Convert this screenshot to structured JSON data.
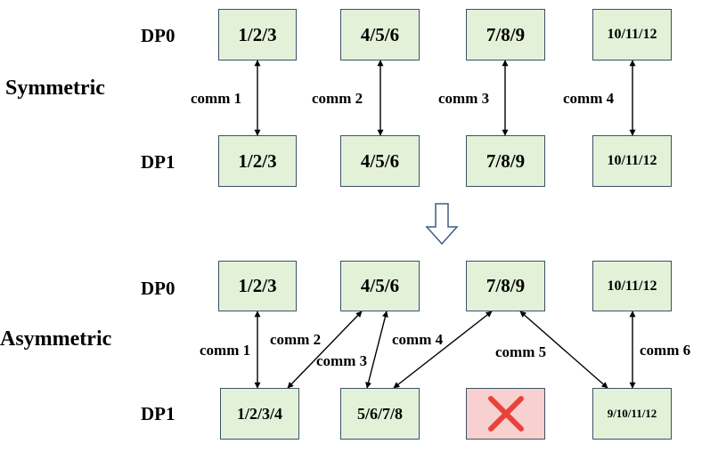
{
  "symmetric": {
    "title": "Symmetric",
    "dp0_label": "DP0",
    "dp1_label": "DP1",
    "dp0": [
      "1/2/3",
      "4/5/6",
      "7/8/9",
      "10/11/12"
    ],
    "dp1": [
      "1/2/3",
      "4/5/6",
      "7/8/9",
      "10/11/12"
    ],
    "comms": [
      "comm 1",
      "comm 2",
      "comm 3",
      "comm 4"
    ]
  },
  "asymmetric": {
    "title": "Asymmetric",
    "dp0_label": "DP0",
    "dp1_label": "DP1",
    "dp0": [
      "1/2/3",
      "4/5/6",
      "7/8/9",
      "10/11/12"
    ],
    "dp1": [
      "1/2/3/4",
      "5/6/7/8",
      "",
      "9/10/11/12"
    ],
    "comms": [
      "comm 1",
      "comm 2",
      "comm 3",
      "comm 4",
      "comm 5",
      "comm 6"
    ]
  },
  "colors": {
    "box_fill": "#e3f1d9",
    "box_border": "#3b5263",
    "failed_fill": "#f8d0d0",
    "failed_mark": "#e8433b"
  },
  "icons": {
    "transition": "down-arrow-icon",
    "failed": "cross-icon"
  }
}
